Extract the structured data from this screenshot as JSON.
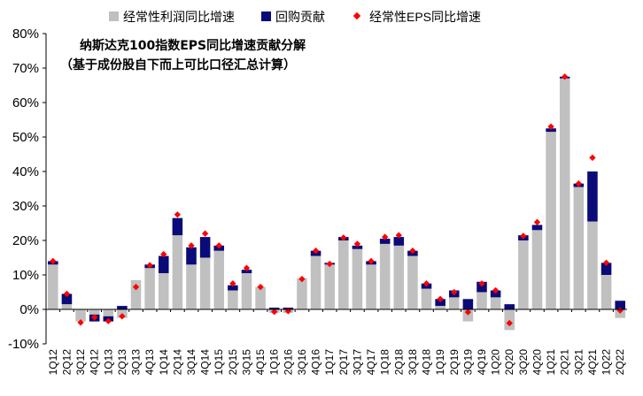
{
  "chart_data": {
    "type": "bar",
    "title": "纳斯达克100指数EPS同比增速贡献分解",
    "subtitle": "（基于成份股自下而上可比口径汇总计算）",
    "xlabel": "",
    "ylabel": "",
    "ylim": [
      -10,
      80
    ],
    "y_ticks": [
      "-10%",
      "0%",
      "10%",
      "20%",
      "30%",
      "40%",
      "50%",
      "60%",
      "70%",
      "80%"
    ],
    "legend_position": "top",
    "colors": {
      "op": "#c0c0c0",
      "buyback": "#0a0a78",
      "eps": "#ff0000"
    },
    "categories": [
      "1Q12",
      "2Q12",
      "3Q12",
      "4Q12",
      "1Q13",
      "2Q13",
      "3Q13",
      "4Q13",
      "1Q14",
      "2Q14",
      "3Q14",
      "4Q14",
      "1Q15",
      "2Q15",
      "3Q15",
      "4Q15",
      "1Q16",
      "2Q16",
      "3Q16",
      "4Q16",
      "1Q17",
      "2Q17",
      "3Q17",
      "4Q17",
      "1Q18",
      "2Q18",
      "3Q18",
      "4Q18",
      "1Q19",
      "2Q19",
      "3Q19",
      "4Q19",
      "1Q20",
      "2Q20",
      "3Q20",
      "4Q20",
      "1Q21",
      "2Q21",
      "3Q21",
      "4Q21",
      "1Q22",
      "2Q22"
    ],
    "series": [
      {
        "name": "经常性利润同比增速",
        "kind": "bar",
        "values": [
          13,
          1.5,
          -3.5,
          -1.5,
          -2,
          -2.5,
          8.5,
          12,
          10.5,
          21.5,
          13,
          15,
          17,
          5.5,
          10.5,
          6.5,
          -1,
          -1,
          9,
          15.5,
          13,
          20,
          17.5,
          13,
          19,
          18.5,
          15.5,
          6,
          1,
          3.5,
          -3.5,
          5,
          3.5,
          -6,
          20,
          23,
          51.5,
          67,
          35.5,
          25.5,
          10,
          -2.5
        ]
      },
      {
        "name": "回购贡献",
        "kind": "bar",
        "values": [
          1,
          3,
          0,
          -2,
          -1.5,
          1,
          0,
          1,
          5,
          5,
          5,
          6,
          1.5,
          1.5,
          1,
          0,
          0.5,
          0.5,
          0,
          1.5,
          0.5,
          1,
          1,
          1,
          1.5,
          2.5,
          1.5,
          1.5,
          2,
          2,
          3,
          3,
          2,
          1.5,
          1.5,
          1.5,
          1,
          0.5,
          1,
          14.5,
          3.5,
          2.5
        ]
      },
      {
        "name": "经常性EPS同比增速",
        "kind": "point",
        "values": [
          14,
          4.5,
          -3.8,
          -2.3,
          -3.4,
          -2,
          6.5,
          12.8,
          16,
          27.5,
          18.5,
          22,
          18.5,
          7.5,
          12,
          6.5,
          -0.7,
          -0.5,
          8.8,
          17,
          13.2,
          20.8,
          19,
          14,
          21,
          21.5,
          17,
          7.5,
          3,
          5,
          -0.8,
          7.5,
          5.5,
          -4,
          21.3,
          25.3,
          53,
          67.5,
          36.5,
          44,
          13.5,
          -0.3
        ]
      }
    ]
  }
}
